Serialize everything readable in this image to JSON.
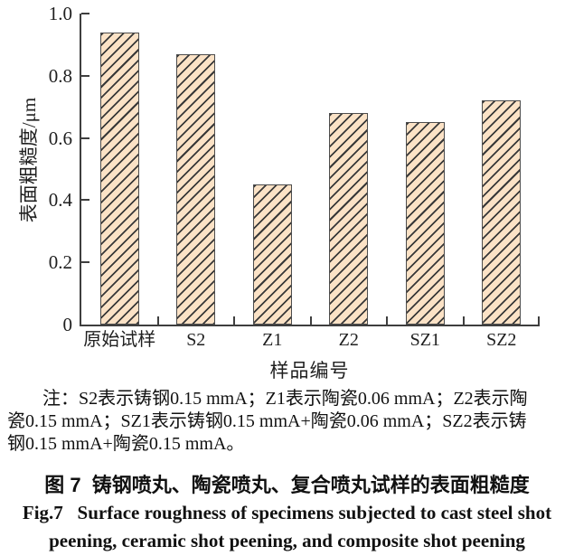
{
  "chart_data": {
    "type": "bar",
    "categories": [
      "原始试样",
      "S2",
      "Z1",
      "Z2",
      "SZ1",
      "SZ2"
    ],
    "values": [
      0.94,
      0.87,
      0.45,
      0.68,
      0.65,
      0.72
    ],
    "title": "",
    "xlabel": "样品编号",
    "ylabel": "表面粗糙度/μm",
    "ylim": [
      0,
      1.0
    ],
    "yticks": [
      0,
      0.2,
      0.4,
      0.6,
      0.8,
      1.0
    ],
    "ytick_labels": [
      "0",
      "0.2",
      "0.4",
      "0.6",
      "0.8",
      "1.0"
    ],
    "grid": false,
    "legend_position": "none",
    "bar_fill_color": "#fbe2c6",
    "bar_hatch": "forward-diagonal",
    "hatch_color": "#383838",
    "bar_edge_color": "#4d4d4d",
    "axis_color": "#3e3e3e"
  },
  "note": {
    "lines": [
      "注：S2表示铸钢0.15 mmA；Z1表示陶瓷0.06 mmA；Z2表示陶",
      "瓷0.15 mmA；SZ1表示铸钢0.15 mmA+陶瓷0.06 mmA；SZ2表示铸",
      "钢0.15 mmA+陶瓷0.15 mmA。"
    ]
  },
  "captions": {
    "zh": "图 7  铸钢喷丸、陶瓷喷丸、复合喷丸试样的表面粗糙度",
    "en_line1": "Fig.7   Surface roughness of specimens subjected to cast steel shot",
    "en_line2": "peening, ceramic shot peening, and composite shot peening"
  }
}
